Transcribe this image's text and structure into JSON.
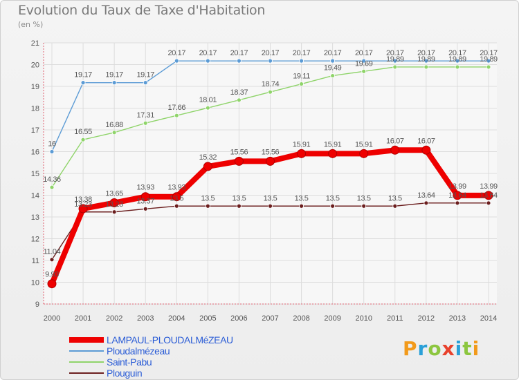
{
  "title": "Evolution du Taux de Taxe d'Habitation",
  "subtitle": "(en %)",
  "logo": {
    "text": "Proxiti",
    "letter_colors": [
      "#f29a1a",
      "#2aa0d8",
      "#8cc63f",
      "#e8412c",
      "#2aa0d8",
      "#8cc63f",
      "#f29a1a"
    ]
  },
  "chart_data": {
    "type": "line",
    "x": [
      2000,
      2001,
      2002,
      2003,
      2004,
      2005,
      2006,
      2007,
      2008,
      2009,
      2010,
      2011,
      2012,
      2013,
      2014
    ],
    "ylim": [
      9,
      21
    ],
    "yticks": [
      9,
      10,
      11,
      12,
      13,
      14,
      15,
      16,
      17,
      18,
      19,
      20,
      21
    ],
    "grid": true,
    "legend_position": "bottom-left",
    "series": [
      {
        "name": "LAMPAUL-PLOUDALMéZEAU",
        "color": "#ee0000",
        "values": [
          9.93,
          13.38,
          13.65,
          13.93,
          13.93,
          15.32,
          15.56,
          15.56,
          15.91,
          15.91,
          15.91,
          16.07,
          16.07,
          13.99,
          13.99
        ],
        "labels": [
          "9.93",
          "13.38",
          "13.65",
          "13.93",
          "13.93",
          "15.32",
          "15.56",
          "15.56",
          "15.91",
          "15.91",
          "15.91",
          "16.07",
          "16.07",
          "13.99",
          "13.99"
        ]
      },
      {
        "name": "Ploudalmézeau",
        "color": "#5b9bd5",
        "values": [
          16,
          19.17,
          19.17,
          19.17,
          20.17,
          20.17,
          20.17,
          20.17,
          20.17,
          20.17,
          20.17,
          20.17,
          20.17,
          20.17,
          20.17
        ],
        "labels": [
          "16",
          "19.17",
          "19.17",
          "19.17",
          "20.17",
          "20.17",
          "20.17",
          "20.17",
          "20.17",
          "20.17",
          "20.17",
          "20.17",
          "20.17",
          "20.17",
          "20.17"
        ]
      },
      {
        "name": "Saint-Pabu",
        "color": "#8fd46a",
        "values": [
          14.36,
          16.55,
          16.88,
          17.31,
          17.66,
          18.01,
          18.37,
          18.74,
          19.11,
          19.49,
          19.69,
          19.89,
          19.89,
          19.89,
          19.89
        ],
        "labels": [
          "14.36",
          "16.55",
          "16.88",
          "17.31",
          "17.66",
          "18.01",
          "18.37",
          "18.74",
          "19.11",
          "19.49",
          "19.69",
          "19.89",
          "19.89",
          "19.89",
          "19.89"
        ]
      },
      {
        "name": "Plouguin",
        "color": "#6b1e1e",
        "values": [
          11.04,
          13.23,
          13.23,
          13.37,
          13.5,
          13.5,
          13.5,
          13.5,
          13.5,
          13.5,
          13.5,
          13.5,
          13.64,
          13.64,
          13.64
        ],
        "labels": [
          "11.04",
          "13.23",
          "13.23",
          "13.37",
          "13.5",
          "13.5",
          "13.5",
          "13.5",
          "13.5",
          "13.5",
          "13.5",
          "13.5",
          "13.64",
          "13.64",
          "13.64"
        ]
      }
    ]
  }
}
